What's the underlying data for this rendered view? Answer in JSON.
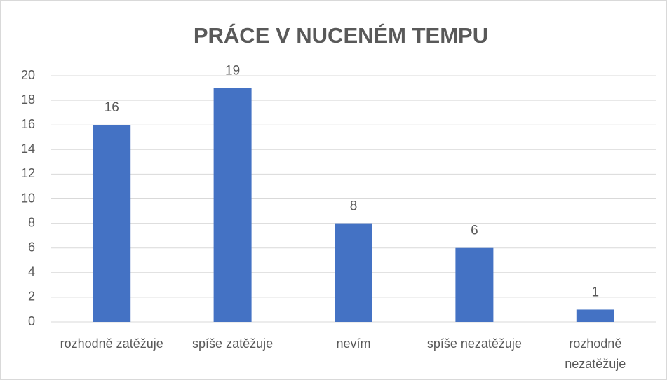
{
  "chart_data": {
    "type": "bar",
    "title": "PRÁCE V NUCENÉM TEMPU",
    "categories": [
      "rozhodně zatěžuje",
      "spíše zatěžuje",
      "nevím",
      "spíše nezatěžuje",
      "rozhodně nezatěžuje"
    ],
    "values": [
      16,
      19,
      8,
      6,
      1
    ],
    "color": "#4472c4",
    "ylim": [
      0,
      20
    ],
    "yticks": [
      0,
      2,
      4,
      6,
      8,
      10,
      12,
      14,
      16,
      18,
      20
    ],
    "grid": true
  }
}
